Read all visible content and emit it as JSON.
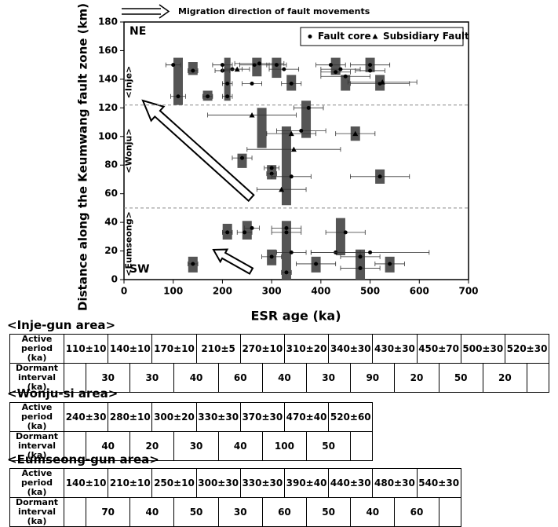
{
  "annotation": "Migration direction of fault movements",
  "chart_data": {
    "type": "scatter",
    "xlabel": "ESR age (ka)",
    "ylabel": "Distance along the Keumwang fault zone (km)",
    "xlim": [
      0,
      700
    ],
    "ylim": [
      0,
      180
    ],
    "xticks": [
      0,
      100,
      200,
      300,
      400,
      500,
      600,
      700
    ],
    "yticks": [
      0,
      20,
      40,
      60,
      80,
      100,
      120,
      140,
      160,
      180
    ],
    "corner_labels": [
      "NE",
      "SW"
    ],
    "region_labels": [
      "<Inje>",
      "<Wonju>",
      "<Eumseong>"
    ],
    "boundaries": [
      122,
      50
    ],
    "legend": "top-right",
    "series": [
      {
        "name": "Fault core",
        "marker": "circle",
        "color": "#000000",
        "x": [
          100,
          140,
          200,
          200,
          220,
          265,
          275,
          310,
          325,
          420,
          440,
          430,
          500,
          500,
          110,
          170,
          210,
          210,
          260,
          340,
          450,
          520,
          375,
          360,
          240,
          300,
          300,
          340,
          520,
          210,
          260,
          245,
          330,
          330,
          450,
          140,
          300,
          340,
          430,
          500,
          480,
          390,
          540,
          480,
          330
        ],
        "values": [
          150,
          146,
          150,
          146,
          147,
          150,
          151,
          150,
          147,
          150,
          147,
          145,
          150,
          146,
          128,
          128,
          128,
          137,
          137,
          137,
          142,
          137,
          120,
          104,
          85,
          78,
          74,
          72,
          72,
          33,
          36,
          33,
          36,
          33,
          33,
          11,
          16,
          19,
          19,
          19,
          16,
          11,
          11,
          8,
          5
        ],
        "xerr": [
          15,
          10,
          20,
          15,
          20,
          30,
          50,
          20,
          30,
          30,
          40,
          30,
          40,
          30,
          15,
          10,
          10,
          10,
          20,
          20,
          50,
          60,
          30,
          50,
          20,
          15,
          10,
          40,
          60,
          10,
          15,
          15,
          30,
          30,
          40,
          10,
          20,
          30,
          50,
          120,
          40,
          40,
          30,
          40,
          10
        ]
      },
      {
        "name": "Subsidiary Fault",
        "marker": "triangle",
        "color": "#000000",
        "x": [
          230,
          525,
          260,
          340,
          470,
          345,
          320
        ],
        "values": [
          147,
          138,
          115,
          102,
          102,
          91,
          63
        ],
        "xerr": [
          25,
          70,
          90,
          50,
          40,
          95,
          50
        ]
      }
    ],
    "active_periods": {
      "color": "#555555",
      "x": [
        110,
        140,
        170,
        210,
        270,
        310,
        340,
        430,
        450,
        500,
        520,
        240,
        280,
        300,
        330,
        370,
        470,
        520,
        140,
        210,
        250,
        300,
        330,
        390,
        440,
        480,
        540
      ],
      "xerr": [
        10,
        10,
        10,
        5,
        10,
        20,
        30,
        30,
        70,
        30,
        30,
        30,
        10,
        20,
        30,
        30,
        40,
        60,
        10,
        10,
        10,
        30,
        30,
        40,
        30,
        30,
        30
      ],
      "ylow": [
        122,
        143,
        125,
        125,
        142,
        141,
        132,
        143,
        132,
        145,
        132,
        78,
        92,
        70,
        52,
        99,
        97,
        67,
        5,
        28,
        28,
        10,
        0,
        5,
        17,
        0,
        5
      ],
      "yhigh": [
        155,
        152,
        132,
        155,
        155,
        155,
        143,
        155,
        143,
        155,
        143,
        88,
        120,
        80,
        107,
        125,
        107,
        77,
        16,
        39,
        41,
        21,
        41,
        16,
        43,
        21,
        16
      ]
    }
  },
  "tables": [
    {
      "title": "<Inje-gun area>",
      "row_labels": [
        "Active period (ka)",
        "Dormant interval (ka)"
      ],
      "active": [
        "110±10",
        "140±10",
        "170±10",
        "210±5",
        "270±10",
        "310±20",
        "340±30",
        "430±30",
        "450±70",
        "500±30",
        "520±30"
      ],
      "dormant": [
        "30",
        "30",
        "40",
        "60",
        "40",
        "30",
        "90",
        "20",
        "50",
        "20"
      ]
    },
    {
      "title": "<Wonju-si area>",
      "row_labels": [
        "Active period (ka)",
        "Dormant interval (ka)"
      ],
      "active": [
        "240±30",
        "280±10",
        "300±20",
        "330±30",
        "370±30",
        "470±40",
        "520±60"
      ],
      "dormant": [
        "40",
        "20",
        "30",
        "40",
        "100",
        "50"
      ]
    },
    {
      "title": "<Eumseong-gun area>",
      "row_labels": [
        "Active period (ka)",
        "Dormant interval (ka)"
      ],
      "active": [
        "140±10",
        "210±10",
        "250±10",
        "300±30",
        "330±30",
        "390±40",
        "440±30",
        "480±30",
        "540±30"
      ],
      "dormant": [
        "70",
        "40",
        "50",
        "30",
        "60",
        "50",
        "40",
        "60"
      ]
    }
  ]
}
